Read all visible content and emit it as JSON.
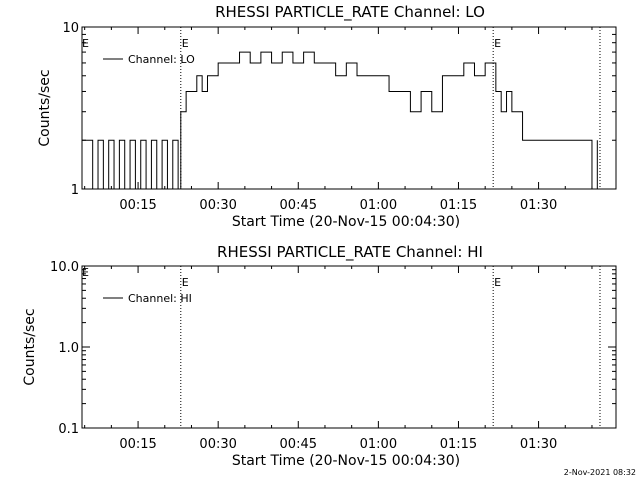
{
  "chart_data": [
    {
      "type": "line",
      "title": "RHESSI PARTICLE_RATE Channel: LO",
      "xlabel": "Start Time (20-Nov-15 00:04:30)",
      "ylabel": "Counts/sec",
      "yscale": "log",
      "ylim": [
        1,
        10
      ],
      "xlim": [
        "00:04:30",
        "01:44:30"
      ],
      "x_ticks": [
        "00:15",
        "00:30",
        "00:45",
        "01:00",
        "01:15",
        "01:30"
      ],
      "y_ticks": [
        "1",
        "10"
      ],
      "markers": [
        {
          "x": "00:23:00",
          "label": "E"
        },
        {
          "x": "01:21:30",
          "label": "E"
        },
        {
          "x": "01:41:30",
          "label": ""
        }
      ],
      "edge_label": "E",
      "legend": {
        "position": "top-left",
        "entries": [
          "Channel: LO"
        ]
      },
      "series": [
        {
          "name": "Channel: LO",
          "x": [
            "00:04:30",
            "00:06:30",
            "00:07:30",
            "00:08:30",
            "00:09:30",
            "00:10:30",
            "00:11:30",
            "00:12:30",
            "00:13:30",
            "00:14:30",
            "00:15:30",
            "00:16:30",
            "00:17:30",
            "00:18:30",
            "00:19:30",
            "00:20:30",
            "00:21:30",
            "00:22:30",
            "00:23:00",
            "00:24:00",
            "00:25:00",
            "00:26:00",
            "00:27:00",
            "00:28:00",
            "00:29:00",
            "00:30:00",
            "00:32:00",
            "00:34:00",
            "00:36:00",
            "00:38:00",
            "00:40:00",
            "00:42:00",
            "00:44:00",
            "00:46:00",
            "00:48:00",
            "00:50:00",
            "00:52:00",
            "00:54:00",
            "00:56:00",
            "00:58:00",
            "01:00:00",
            "01:02:00",
            "01:04:00",
            "01:06:00",
            "01:08:00",
            "01:10:00",
            "01:12:00",
            "01:14:00",
            "01:16:00",
            "01:18:00",
            "01:20:00",
            "01:21:30",
            "01:22:00",
            "01:23:00",
            "01:24:00",
            "01:25:00",
            "01:27:00",
            "01:30:00",
            "01:35:00",
            "01:39:00",
            "01:40:00",
            "01:41:00"
          ],
          "y": [
            2,
            1,
            2,
            1,
            2,
            1,
            2,
            1,
            2,
            1,
            2,
            1,
            2,
            1,
            2,
            1,
            2,
            1,
            3,
            4,
            4,
            5,
            4,
            5,
            5,
            6,
            6,
            7,
            6,
            7,
            6,
            7,
            6,
            7,
            6,
            6,
            5,
            6,
            5,
            5,
            5,
            4,
            4,
            3,
            4,
            3,
            5,
            5,
            6,
            5,
            6,
            6,
            4,
            3,
            4,
            3,
            2,
            2,
            2,
            2,
            1,
            2
          ]
        }
      ]
    },
    {
      "type": "line",
      "title": "RHESSI PARTICLE_RATE Channel: HI",
      "xlabel": "Start Time (20-Nov-15 00:04:30)",
      "ylabel": "Counts/sec",
      "yscale": "log",
      "ylim": [
        0.1,
        10
      ],
      "xlim": [
        "00:04:30",
        "01:44:30"
      ],
      "x_ticks": [
        "00:15",
        "00:30",
        "00:45",
        "01:00",
        "01:15",
        "01:30"
      ],
      "y_ticks": [
        "0.1",
        "1.0",
        "10.0"
      ],
      "markers": [
        {
          "x": "00:23:00",
          "label": "E"
        },
        {
          "x": "01:21:30",
          "label": "E"
        },
        {
          "x": "01:41:30",
          "label": ""
        }
      ],
      "edge_label": "E",
      "legend": {
        "position": "top-left",
        "entries": [
          "Channel: HI"
        ]
      },
      "series": [
        {
          "name": "Channel: HI",
          "x": [],
          "y": []
        }
      ]
    }
  ],
  "footer": {
    "timestamp": "2-Nov-2021 08:32"
  }
}
